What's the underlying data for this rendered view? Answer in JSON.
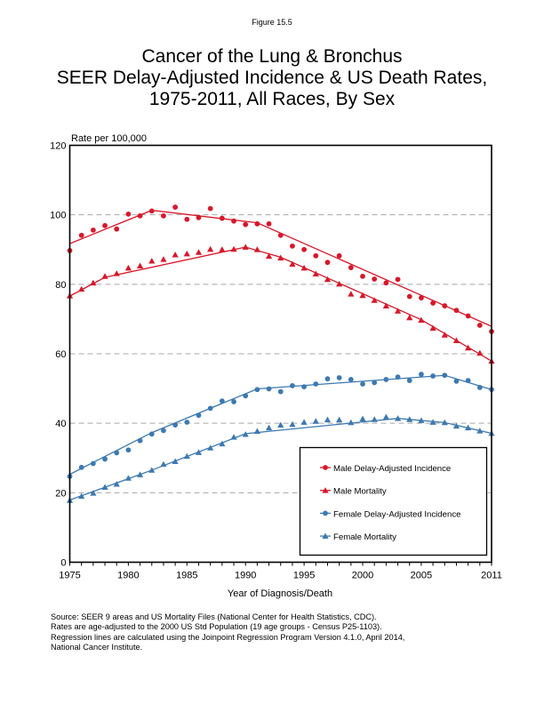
{
  "figure_label": "Figure 15.5",
  "title_lines": [
    "Cancer of the Lung & Bronchus",
    "SEER Delay-Adjusted Incidence & US Death Rates,",
    "1975-2011, All Races, By Sex"
  ],
  "source_lines": [
    "Source: SEER 9 areas and US Mortality Files (National Center for Health Statistics, CDC).",
    "Rates are age-adjusted to the 2000 US Std Population (19 age groups - Census P25-1103).",
    "Regression lines are calculated using the Joinpoint Regression Program Version 4.1.0, April 2014,",
    "National Cancer Institute."
  ],
  "colors": {
    "male": "#d7182a",
    "female": "#3d79b1",
    "grid": "#a8a8a8"
  },
  "chart_data": {
    "type": "scatter",
    "title": "Cancer of the Lung & Bronchus SEER Delay-Adjusted Incidence & US Death Rates, 1975-2011, All Races, By Sex",
    "xlabel": "Year of Diagnosis/Death",
    "ylabel": "Rate per 100,000",
    "xlim": [
      1975,
      2011
    ],
    "ylim": [
      0,
      120
    ],
    "xticks": [
      1975,
      1980,
      1985,
      1990,
      1995,
      2000,
      2005,
      2011
    ],
    "yticks": [
      0,
      20,
      40,
      60,
      80,
      100,
      120
    ],
    "grid": "horizontal dashed at 20, 40, 60, 80, 100",
    "legend_position": "bottom-right",
    "years": [
      1975,
      1976,
      1977,
      1978,
      1979,
      1980,
      1981,
      1982,
      1983,
      1984,
      1985,
      1986,
      1987,
      1988,
      1989,
      1990,
      1991,
      1992,
      1993,
      1994,
      1995,
      1996,
      1997,
      1998,
      1999,
      2000,
      2001,
      2002,
      2003,
      2004,
      2005,
      2006,
      2007,
      2008,
      2009,
      2010,
      2011
    ],
    "series": [
      {
        "name": "Male Delay-Adjusted Incidence",
        "sex": "male",
        "marker": "circle",
        "values": [
          89.7,
          94.1,
          95.6,
          96.9,
          95.9,
          100.2,
          99.7,
          101.1,
          99.7,
          102.2,
          98.7,
          99.2,
          101.8,
          99.0,
          98.2,
          97.2,
          97.4,
          97.4,
          94.1,
          91.0,
          90.0,
          88.2,
          86.3,
          88.2,
          84.8,
          82.3,
          81.5,
          80.4,
          81.4,
          76.5,
          76.1,
          74.6,
          73.8,
          72.5,
          70.9,
          68.2,
          66.4
        ],
        "regression": [
          [
            1975,
            91.7
          ],
          [
            1982,
            101.3
          ],
          [
            1991,
            97.7
          ],
          [
            2011,
            67.9
          ]
        ]
      },
      {
        "name": "Male Mortality",
        "sex": "male",
        "marker": "triangle",
        "values": [
          76.7,
          78.6,
          80.4,
          82.3,
          83.1,
          84.7,
          85.3,
          86.7,
          87.2,
          88.5,
          88.8,
          89.2,
          90.1,
          90.0,
          90.1,
          90.7,
          90.0,
          88.1,
          87.6,
          85.8,
          84.7,
          83.0,
          81.4,
          80.1,
          77.2,
          76.8,
          75.4,
          73.8,
          72.3,
          70.4,
          69.7,
          67.4,
          65.4,
          63.8,
          61.7,
          60.2,
          57.9
        ],
        "regression": [
          [
            1975,
            76.6
          ],
          [
            1978,
            82.0
          ],
          [
            1990,
            90.7
          ],
          [
            1993,
            87.8
          ],
          [
            2005,
            69.8
          ],
          [
            2011,
            57.9
          ]
        ]
      },
      {
        "name": "Female Delay-Adjusted Incidence",
        "sex": "female",
        "marker": "circle",
        "values": [
          24.7,
          27.3,
          28.4,
          29.7,
          31.5,
          32.3,
          35.0,
          36.9,
          37.9,
          39.5,
          40.3,
          42.3,
          44.3,
          46.4,
          46.2,
          47.9,
          49.7,
          49.9,
          49.1,
          50.8,
          50.5,
          51.3,
          52.8,
          53.1,
          52.6,
          51.3,
          51.7,
          52.6,
          53.3,
          52.3,
          54.1,
          53.6,
          53.8,
          52.1,
          52.3,
          50.3,
          49.7
        ],
        "regression": [
          [
            1975,
            25.3
          ],
          [
            1982,
            37.3
          ],
          [
            1991,
            49.9
          ],
          [
            2007,
            53.8
          ],
          [
            2011,
            49.7
          ]
        ]
      },
      {
        "name": "Female Mortality",
        "sex": "female",
        "marker": "triangle",
        "values": [
          17.8,
          19.0,
          19.9,
          21.6,
          22.5,
          24.2,
          25.2,
          26.5,
          28.2,
          29.0,
          30.5,
          31.6,
          32.9,
          34.1,
          36.0,
          36.8,
          37.7,
          38.7,
          39.5,
          39.7,
          40.3,
          40.6,
          41.0,
          41.0,
          40.2,
          41.3,
          41.1,
          41.8,
          41.4,
          41.1,
          40.8,
          40.3,
          40.2,
          39.2,
          38.7,
          37.8,
          37.1
        ],
        "regression": [
          [
            1975,
            17.9
          ],
          [
            1982,
            26.5
          ],
          [
            1990,
            37.0
          ],
          [
            2003,
            41.4
          ],
          [
            2007,
            40.2
          ],
          [
            2011,
            37.1
          ]
        ]
      }
    ]
  }
}
